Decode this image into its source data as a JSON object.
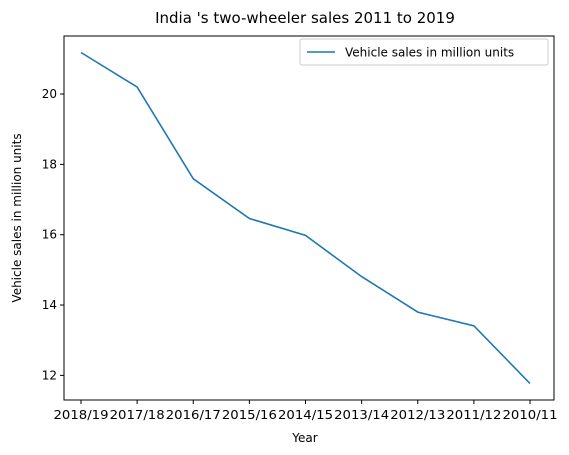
{
  "chart_data": {
    "type": "line",
    "title": "India 's two-wheeler sales 2011 to 2019",
    "xlabel": "Year",
    "ylabel": "Vehicle sales in million units",
    "categories": [
      "2018/19",
      "2017/18",
      "2016/17",
      "2015/16",
      "2014/15",
      "2013/14",
      "2012/13",
      "2011/12",
      "2010/11"
    ],
    "series": [
      {
        "name": "Vehicle sales in million units",
        "color": "#1f77b4",
        "values": [
          21.18,
          20.2,
          17.59,
          16.46,
          15.98,
          14.81,
          13.8,
          13.41,
          11.77
        ]
      }
    ],
    "ylim": [
      11.3,
      21.65
    ],
    "yticks": [
      12,
      14,
      16,
      18,
      20
    ],
    "grid": false,
    "legend_position": "top-right"
  }
}
